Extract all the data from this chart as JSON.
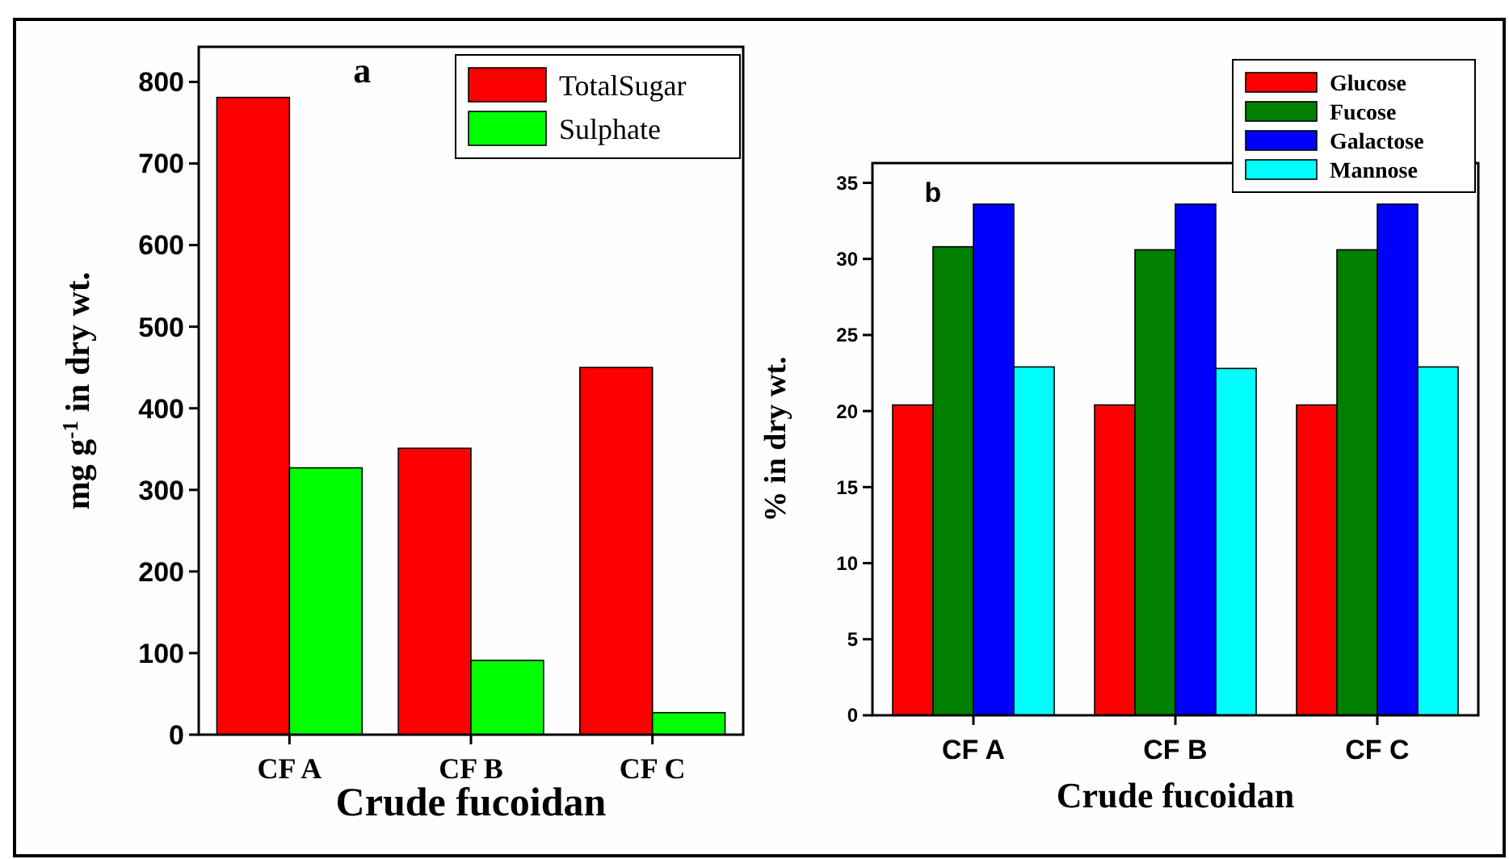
{
  "chart_data": [
    {
      "type": "bar",
      "annotations": [
        "a"
      ],
      "xlabel": "Crude  fucoidan",
      "ylabel": "mg g$^{-1}$ in dry wt.",
      "categories": [
        "CF A",
        "CF B",
        "CF C"
      ],
      "series": [
        {
          "name": "TotalSugar",
          "color": "#ff0000",
          "values": [
            781,
            351,
            450
          ]
        },
        {
          "name": "Sulphate",
          "color": "#00ff00",
          "values": [
            327,
            91,
            27
          ]
        }
      ],
      "ylim": [
        0,
        843
      ],
      "yticks": [
        0,
        100,
        200,
        300,
        400,
        500,
        600,
        700,
        800
      ],
      "legend": "top right"
    },
    {
      "type": "bar",
      "annotations": [
        "b"
      ],
      "xlabel": "Crude fucoidan",
      "ylabel": "% in dry wt.",
      "categories": [
        "CF A",
        "CF B",
        "CF C"
      ],
      "series": [
        {
          "name": "Glucose",
          "color": "#ff0000",
          "values": [
            20.4,
            20.4,
            20.4
          ]
        },
        {
          "name": "Fucose",
          "color": "#007f00",
          "values": [
            30.8,
            30.6,
            30.6
          ]
        },
        {
          "name": "Galactose",
          "color": "#0000ff",
          "values": [
            33.6,
            33.6,
            33.6
          ]
        },
        {
          "name": "Mannose",
          "color": "#00ffff",
          "values": [
            22.9,
            22.8,
            22.9
          ]
        }
      ],
      "ylim": [
        0,
        36.3
      ],
      "yticks": [
        0,
        5,
        10,
        15,
        20,
        25,
        30,
        35
      ],
      "legend": "top right"
    }
  ]
}
